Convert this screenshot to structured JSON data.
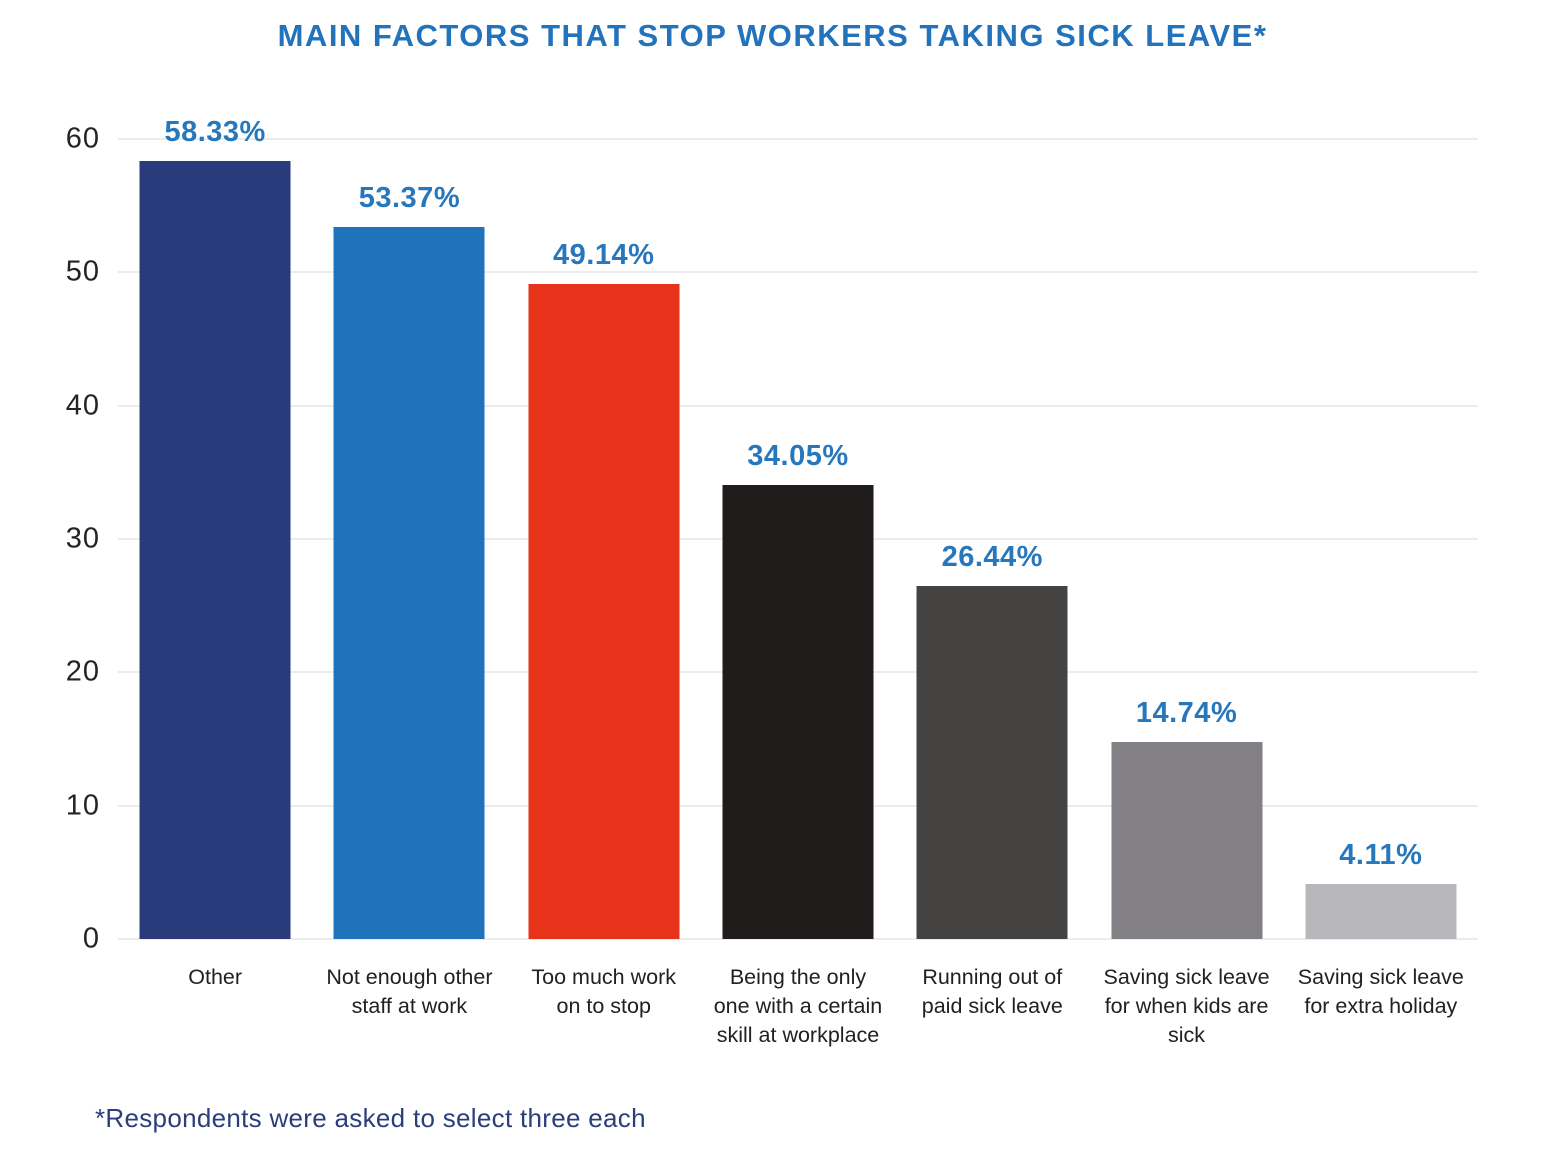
{
  "title": "MAIN FACTORS THAT STOP WORKERS TAKING SICK LEAVE*",
  "footnote": "*Respondents were asked to select three each",
  "colors": {
    "title": "#2273BB",
    "value_label": "#2777BD",
    "axis_text": "#232021",
    "footnote": "#2B3E7C",
    "gridline": "#ECECEC",
    "background": "#FFFFFF"
  },
  "chart_data": {
    "type": "bar",
    "title": "MAIN FACTORS THAT STOP WORKERS TAKING SICK LEAVE*",
    "xlabel": "",
    "ylabel": "",
    "categories": [
      "Other",
      "Not enough other staff at work",
      "Too much work on to stop",
      "Being the only one with a certain skill at workplace",
      "Running out of paid sick leave",
      "Saving sick leave for when kids are sick",
      "Saving sick leave for extra holiday"
    ],
    "values": [
      58.33,
      53.37,
      49.14,
      34.05,
      26.44,
      14.74,
      4.11
    ],
    "value_labels": [
      "58.33%",
      "53.37%",
      "49.14%",
      "34.05%",
      "26.44%",
      "14.74%",
      "4.11%"
    ],
    "bar_colors": [
      "#2A3B7B",
      "#2073BB",
      "#E7331A",
      "#1F1C1B",
      "#454342",
      "#828084",
      "#B8B7BB"
    ],
    "ylim": [
      0,
      60
    ],
    "yticks": [
      0,
      10,
      20,
      30,
      40,
      50,
      60
    ],
    "grid": "horizontal",
    "legend": "none",
    "annotation": "*Respondents were asked to select three each"
  }
}
